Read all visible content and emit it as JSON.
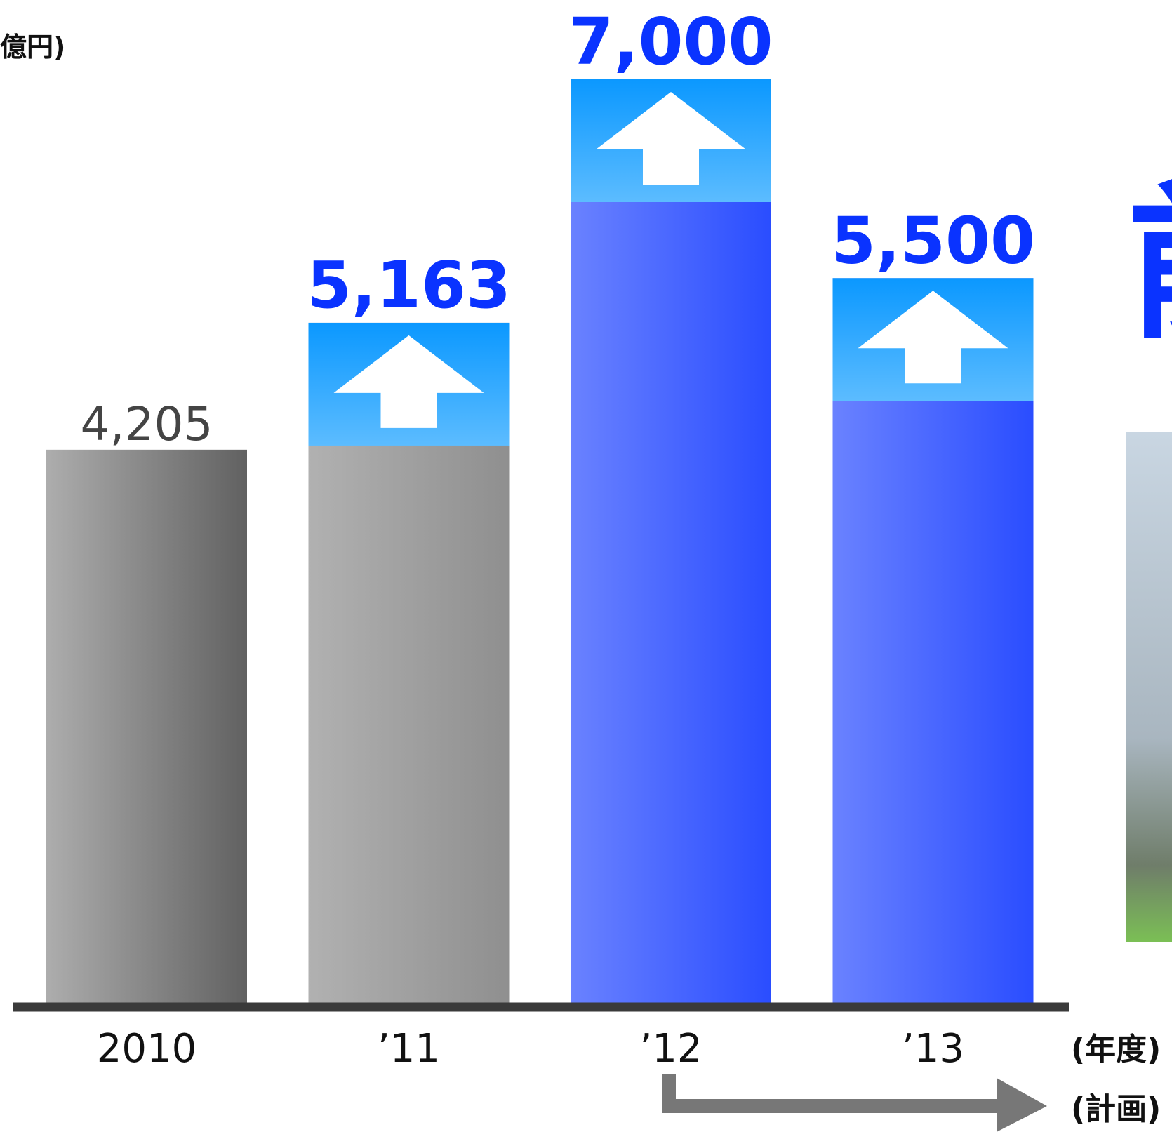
{
  "chart_data": {
    "type": "bar",
    "unit_label": "億円)",
    "categories": [
      "2010",
      "’11",
      "’12",
      "’13"
    ],
    "values": [
      4205,
      5163,
      7000,
      5500
    ],
    "value_labels": [
      "4,205",
      "5,163",
      "7,000",
      "5,500"
    ],
    "colors": [
      "#8a8a8a",
      "#8f8f8f",
      "#2a4dff",
      "#2a4dff"
    ],
    "ylim": [
      0,
      7000
    ],
    "x_axis_label": "(年度)",
    "plan_label": "(計画)",
    "side_title": "前"
  }
}
